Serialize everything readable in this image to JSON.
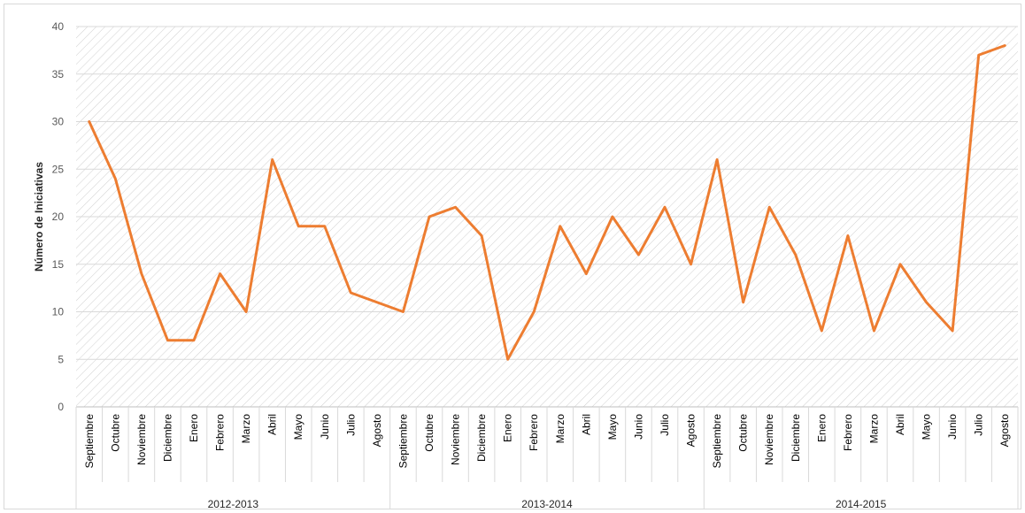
{
  "chart_data": {
    "type": "line",
    "title": "",
    "ylabel": "Número de Iniciativas",
    "xlabel": "",
    "ylim": [
      0,
      40
    ],
    "yticks": [
      0,
      5,
      10,
      15,
      20,
      25,
      30,
      35,
      40
    ],
    "grid": true,
    "legend": "none",
    "colors": {
      "line": "#ED7D31",
      "grid": "#D9D9D9",
      "hatch": "#D0D0D0",
      "axis": "#BFBFBF"
    },
    "groups": [
      {
        "label": "2012-2013",
        "start": 0,
        "end": 11
      },
      {
        "label": "2013-2014",
        "start": 12,
        "end": 23
      },
      {
        "label": "2014-2015",
        "start": 24,
        "end": 35
      }
    ],
    "categories": [
      "Septiembre",
      "Octubre",
      "Noviembre",
      "Diciembre",
      "Enero",
      "Febrero",
      "Marzo",
      "Abril",
      "Mayo",
      "Junio",
      "Julio",
      "Agosto",
      "Septiembre",
      "Octubre",
      "Noviembre",
      "Diciembre",
      "Enero",
      "Febrero",
      "Marzo",
      "Abril",
      "Mayo",
      "Junio",
      "Julio",
      "Agosto",
      "Septiembre",
      "Octubre",
      "Noviembre",
      "Diciembre",
      "Enero",
      "Febrero",
      "Marzo",
      "Abril",
      "Mayo",
      "Junio",
      "Julio",
      "Agosto"
    ],
    "series": [
      {
        "values": [
          30,
          24,
          14,
          7,
          7,
          14,
          10,
          26,
          19,
          19,
          12,
          11,
          10,
          20,
          21,
          18,
          5,
          10,
          19,
          14,
          20,
          16,
          21,
          15,
          26,
          11,
          21,
          16,
          8,
          18,
          8,
          15,
          11,
          8,
          37,
          38
        ]
      }
    ]
  }
}
